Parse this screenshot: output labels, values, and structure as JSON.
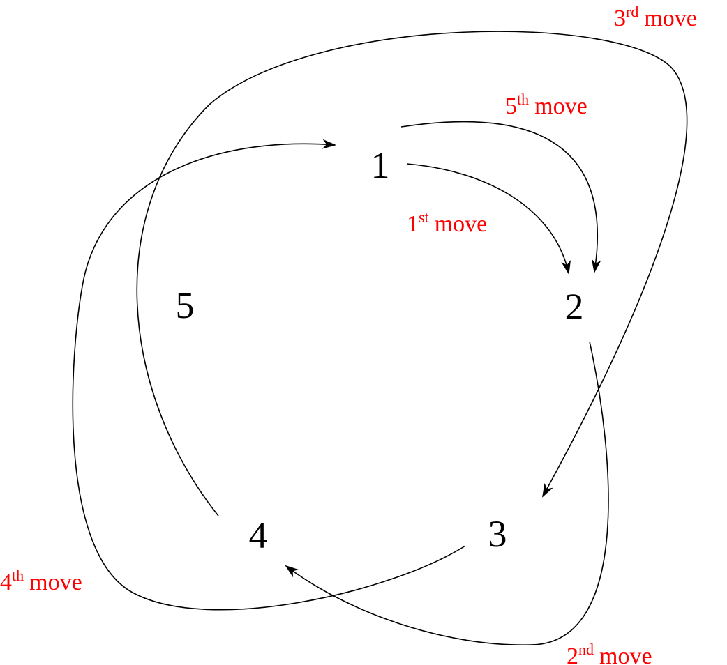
{
  "nodes": [
    {
      "label": "1"
    },
    {
      "label": "2"
    },
    {
      "label": "3"
    },
    {
      "label": "4"
    },
    {
      "label": "5"
    }
  ],
  "moves": [
    {
      "num": "1",
      "sup": "st",
      "text": "move"
    },
    {
      "num": "2",
      "sup": "nd",
      "text": "move"
    },
    {
      "num": "3",
      "sup": "rd",
      "text": "move"
    },
    {
      "num": "4",
      "sup": "th",
      "text": "move"
    },
    {
      "num": "5",
      "sup": "th",
      "text": "move"
    }
  ]
}
